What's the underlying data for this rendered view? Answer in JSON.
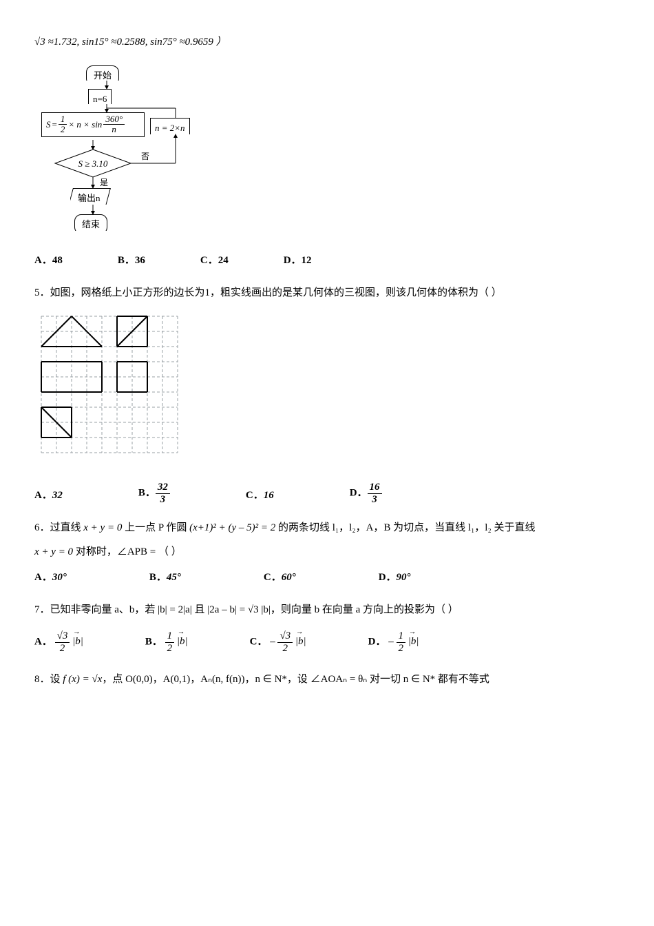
{
  "topline": "√3 ≈1.732, sin15° ≈0.2588, sin75° ≈0.9659 ）",
  "flow": {
    "start": "开始",
    "n6": "n=6",
    "s_lhs": "S",
    "s_eq": "=",
    "s_frac1_n": "1",
    "s_frac1_d": "2",
    "s_mid": "× n × sin",
    "s_frac2_n": "360°",
    "s_frac2_d": "n",
    "n2n": "n = 2×n",
    "cond": "S ≥ 3.10",
    "yes": "是",
    "no": "否",
    "out": "输出n",
    "end": "结束"
  },
  "q4opts": {
    "a": "A．48",
    "b": "B．36",
    "c": "C．24",
    "d": "D．12"
  },
  "q5": {
    "stem": "5．如图，网格纸上小正方形的边长为1，粗实线画出的是某几何体的三视图，则该几何体的体积为（  ）",
    "a_lbl": "A．",
    "a": "32",
    "b_lbl": "B．",
    "b_n": "32",
    "b_d": "3",
    "c_lbl": "C．",
    "c": "16",
    "d_lbl": "D．",
    "d_n": "16",
    "d_d": "3"
  },
  "q6": {
    "stem1": "6．过直线 ",
    "line": "x + y = 0",
    "stem2": " 上一点 P 作圆 ",
    "circle": "(x+1)² + (y – 5)² = 2",
    "stem3": " 的两条切线 l₁，l₂，A，B 为切点，当直线 l₁，l₂ 关于直线",
    "stem4": "x + y = 0",
    "stem5": " 对称时，∠APB = （   ）",
    "a": "A．",
    "av": "30°",
    "b": "B．",
    "bv": "45°",
    "c": "C．",
    "cv": "60°",
    "d": "D．",
    "dv": "90°"
  },
  "q7": {
    "stem1": "7．已知非零向量 a、b，若 |b| = 2|a| 且 |2a – b| = √3 |b|，则向量 b 在向量 a 方向上的投影为（  ）",
    "a_lbl": "A．",
    "a_num": "√3",
    "a_den": "2",
    "a_tail": "|b|",
    "b_lbl": "B．",
    "b_num": "1",
    "b_den": "2",
    "b_tail": "|b|",
    "c_lbl": "C．",
    "c_pre": "–",
    "c_num": "√3",
    "c_den": "2",
    "c_tail": "|b|",
    "d_lbl": "D．",
    "d_pre": "–",
    "d_num": "1",
    "d_den": "2",
    "d_tail": "|b|"
  },
  "q8": {
    "t1": "8．设 ",
    "fx": "f (x) = √x",
    "t2": "，点 O(0,0)，A(0,1)，Aₙ(n, f(n))，n ∈ N*，设 ∠AOAₙ = θₙ 对一切 n ∈ N* 都有不等式"
  },
  "grid": {
    "cell": 22,
    "cols": 9,
    "rows": 9,
    "stroke_grid": "#9aa0a6",
    "stroke_thick": "#000"
  }
}
